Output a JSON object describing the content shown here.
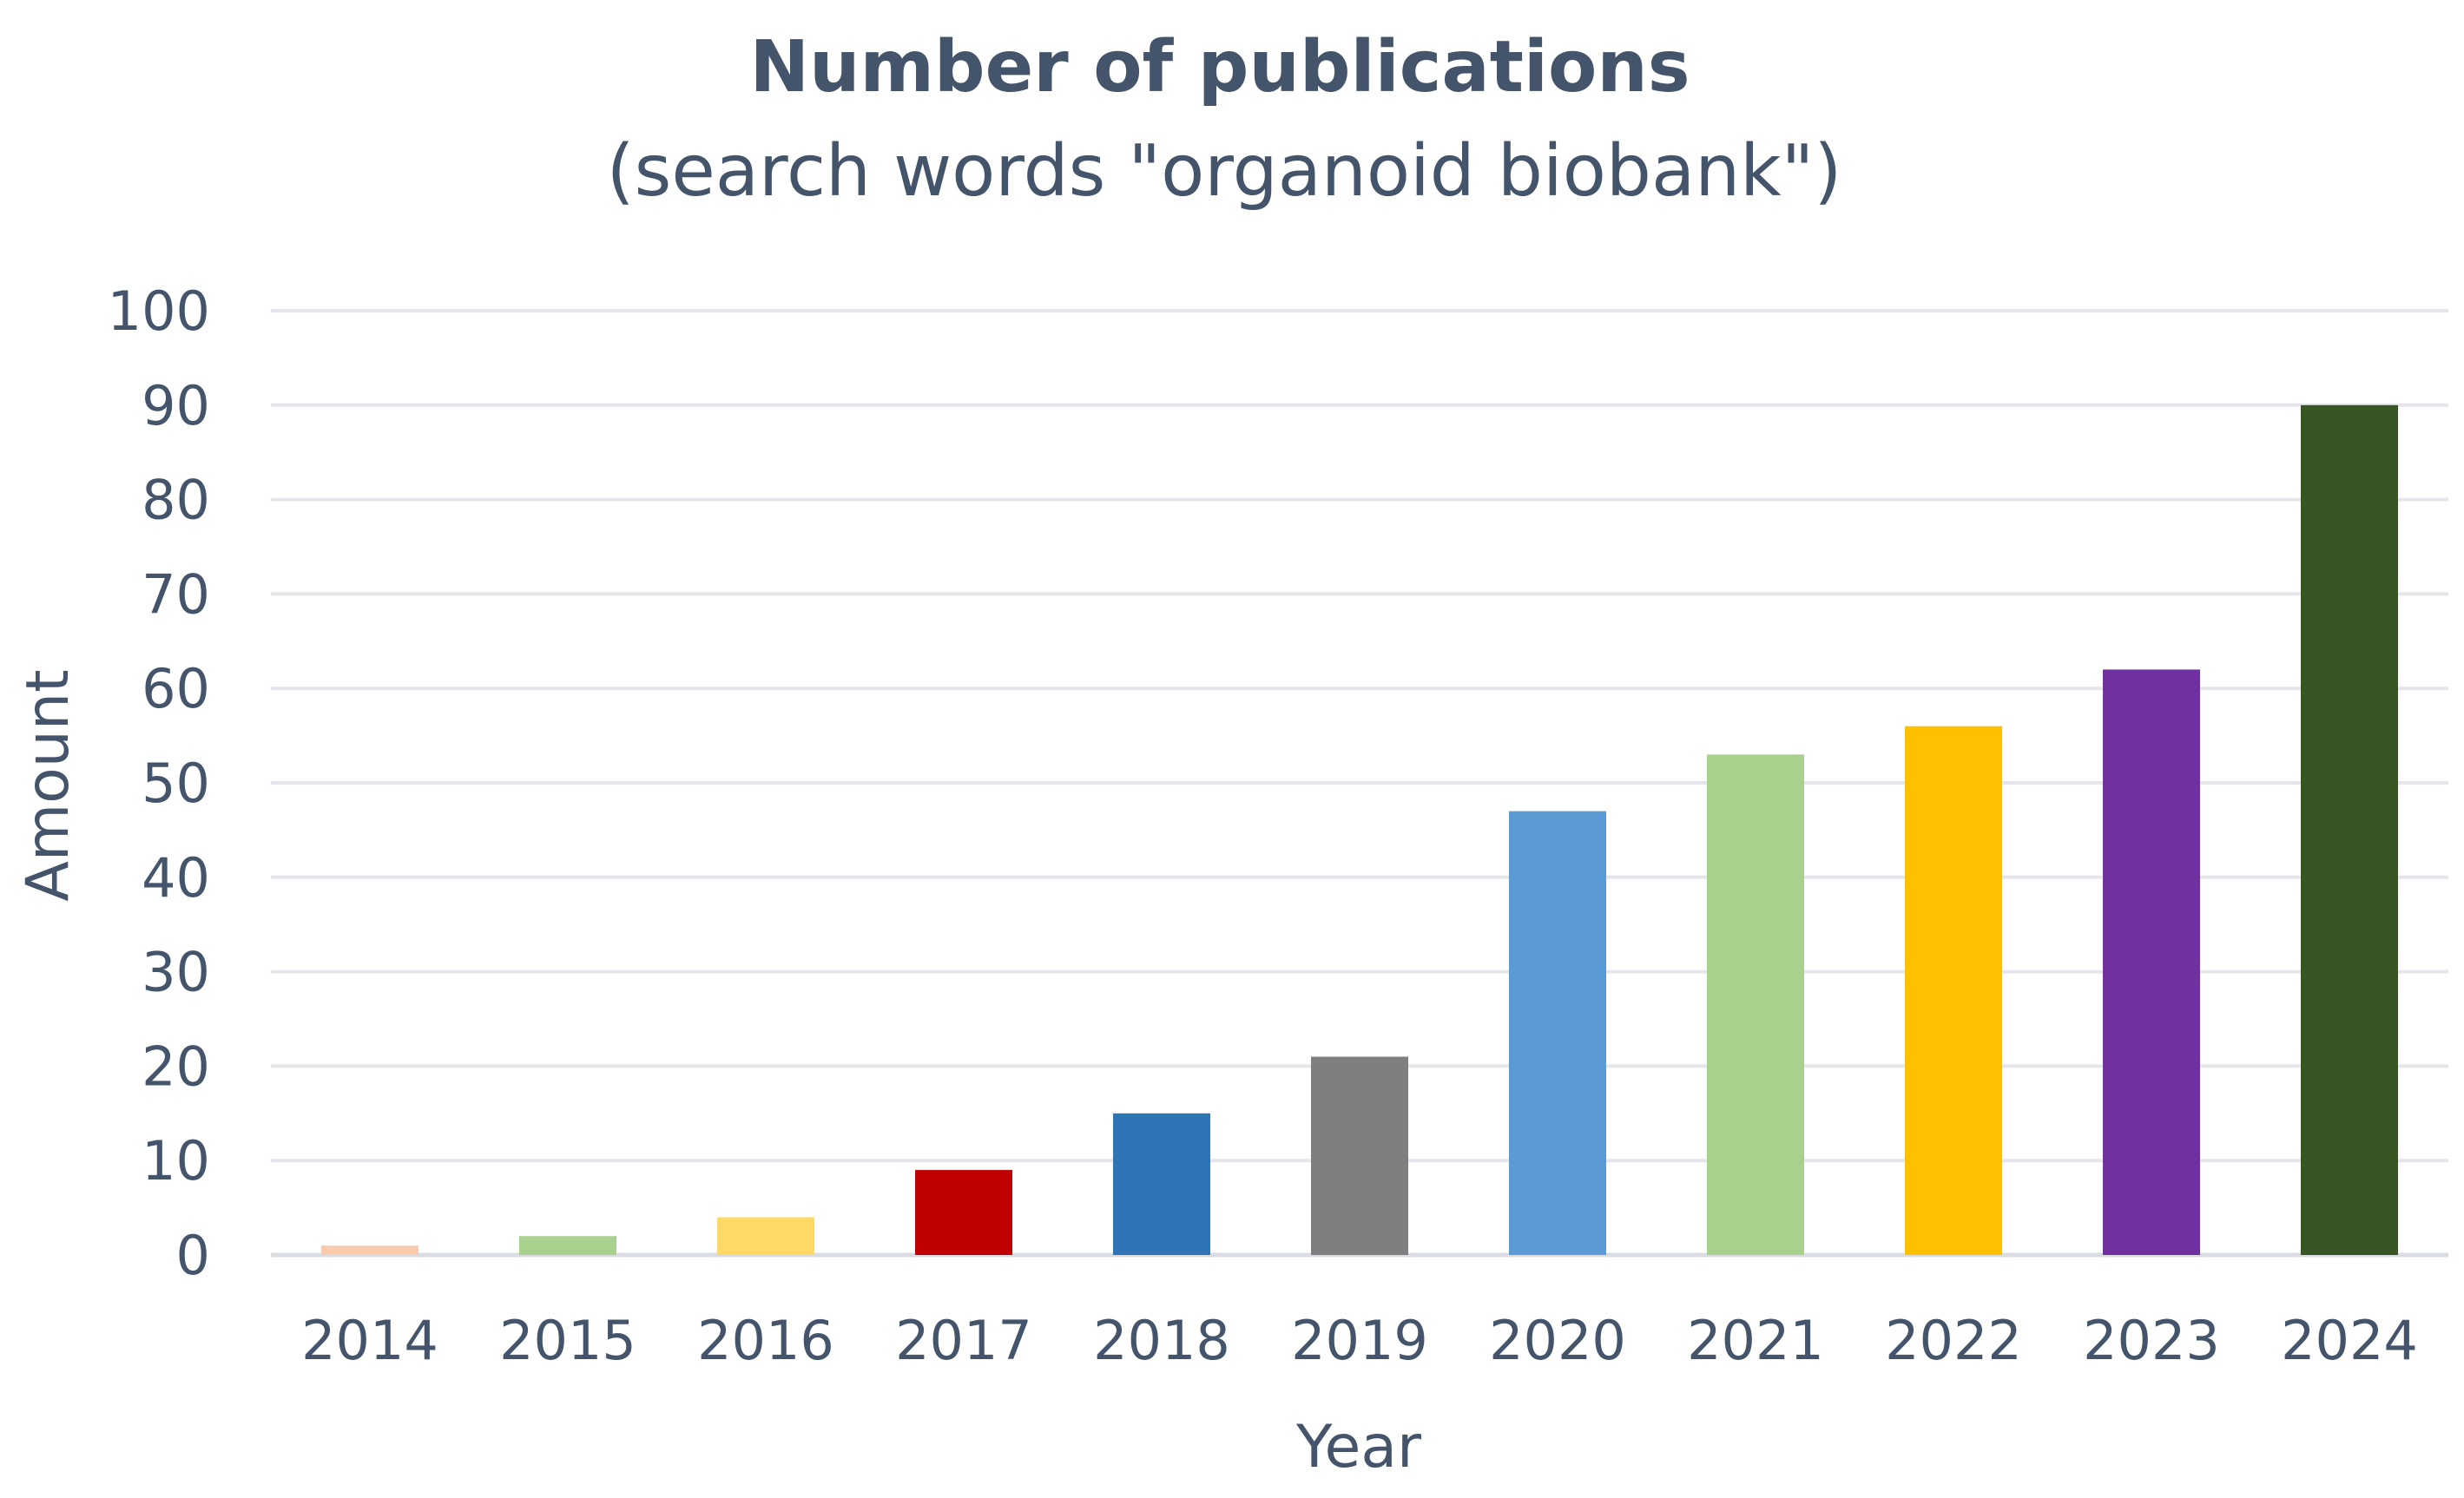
{
  "chart_data": {
    "type": "bar",
    "title": "Number of publications",
    "subtitle": "(search words \"organoid biobank\")",
    "xlabel": "Year",
    "ylabel": "Amount",
    "categories": [
      "2014",
      "2015",
      "2016",
      "2017",
      "2018",
      "2019",
      "2020",
      "2021",
      "2022",
      "2023",
      "2024"
    ],
    "values": [
      1,
      2,
      4,
      9,
      15,
      21,
      47,
      53,
      56,
      62,
      90
    ],
    "bar_colors": [
      "#F8CBAD",
      "#A9D18E",
      "#FFD966",
      "#C00000",
      "#2E75B6",
      "#7F7F7F",
      "#5B9BD5",
      "#A9D18E",
      "#FFC000",
      "#7030A0",
      "#375623"
    ],
    "ylim": [
      0,
      100
    ],
    "yticks": [
      "0",
      "10",
      "20",
      "30",
      "40",
      "50",
      "60",
      "70",
      "80",
      "90",
      "100"
    ],
    "grid": true,
    "legend": "none"
  },
  "colors": {
    "text": "#44546A",
    "gridline": "#E3E6EA",
    "axis_line": "#D9DDE2"
  }
}
